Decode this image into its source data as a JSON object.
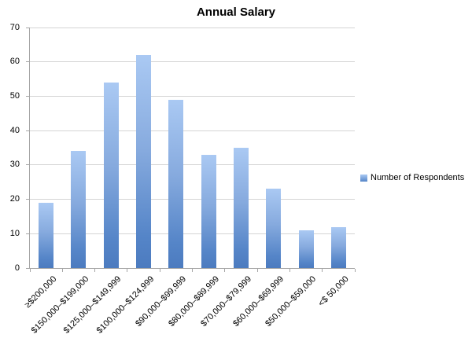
{
  "chart_data": {
    "type": "bar",
    "title": "Annual Salary",
    "categories": [
      "≥$200,000",
      "$150,000–$199,000",
      "$125,000–$149,999",
      "$100,000–$124,999",
      "$90,000–$99,999",
      "$80,000–$89,999",
      "$70,000–$79,999",
      "$60,000–$69,999",
      "$50,000–$59,000",
      "<$ 50,000"
    ],
    "series": [
      {
        "name": "Number of Respondents",
        "values": [
          19,
          34,
          54,
          62,
          49,
          33,
          35,
          23,
          11,
          12
        ]
      }
    ],
    "xlabel": "",
    "ylabel": "",
    "ylim": [
      0,
      70
    ],
    "yticks": [
      0,
      10,
      20,
      30,
      40,
      50,
      60,
      70
    ],
    "grid": true,
    "legend_position": "right",
    "colors": {
      "bar_top": "#aac9f3",
      "bar_bottom": "#4c7bbf",
      "gridline": "#d4d4d4",
      "axis": "#a6a6a6",
      "background": "#ffffff",
      "text": "#000000"
    }
  },
  "legend": {
    "label": "Number of Respondents"
  }
}
